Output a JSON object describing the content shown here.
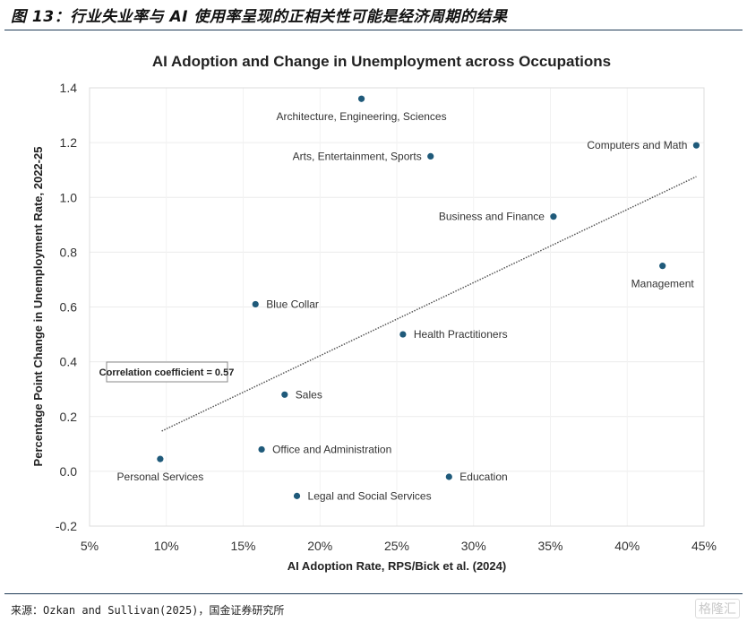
{
  "figure": {
    "title": "图 13：行业失业率与 AI 使用率呈现的正相关性可能是经济周期的结果",
    "source": "来源：Ozkan and Sullivan(2025)，国金证券研究所",
    "watermark": "格隆汇"
  },
  "chart_data": {
    "type": "scatter",
    "title": "AI Adoption and Change in Unemployment across Occupations",
    "xlabel": "AI Adoption Rate, RPS/Bick et al. (2024)",
    "ylabel": "Percentage Point Change in Unemployment Rate, 2022-25",
    "xlim": [
      5,
      45
    ],
    "ylim": [
      -0.2,
      1.4
    ],
    "x_ticks": [
      "5%",
      "10%",
      "15%",
      "20%",
      "25%",
      "30%",
      "35%",
      "40%",
      "45%"
    ],
    "x_tick_values": [
      5,
      10,
      15,
      20,
      25,
      30,
      35,
      40,
      45
    ],
    "y_ticks": [
      "-0.2",
      "0.0",
      "0.2",
      "0.4",
      "0.6",
      "0.8",
      "1.0",
      "1.2",
      "1.4"
    ],
    "y_tick_values": [
      -0.2,
      0.0,
      0.2,
      0.4,
      0.6,
      0.8,
      1.0,
      1.2,
      1.4
    ],
    "grid": true,
    "point_color": "#1f5a7a",
    "points": [
      {
        "label": "Architecture, Engineering, Sciences",
        "x": 22.7,
        "y": 1.36,
        "label_pos": "below"
      },
      {
        "label": "Arts, Entertainment, Sports",
        "x": 27.2,
        "y": 1.15,
        "label_pos": "left"
      },
      {
        "label": "Computers and Math",
        "x": 44.5,
        "y": 1.19,
        "label_pos": "left"
      },
      {
        "label": "Business and Finance",
        "x": 35.2,
        "y": 0.93,
        "label_pos": "left"
      },
      {
        "label": "Management",
        "x": 42.3,
        "y": 0.75,
        "label_pos": "below"
      },
      {
        "label": "Blue Collar",
        "x": 15.8,
        "y": 0.61,
        "label_pos": "right"
      },
      {
        "label": "Health Practitioners",
        "x": 25.4,
        "y": 0.5,
        "label_pos": "right"
      },
      {
        "label": "Sales",
        "x": 17.7,
        "y": 0.28,
        "label_pos": "right"
      },
      {
        "label": "Office and Administration",
        "x": 16.2,
        "y": 0.08,
        "label_pos": "right"
      },
      {
        "label": "Personal Services",
        "x": 9.6,
        "y": 0.045,
        "label_pos": "below"
      },
      {
        "label": "Education",
        "x": 28.4,
        "y": -0.02,
        "label_pos": "right"
      },
      {
        "label": "Legal and Social Services",
        "x": 18.5,
        "y": -0.09,
        "label_pos": "right"
      }
    ],
    "trendline": {
      "style": "dotted",
      "x": [
        9.7,
        44.5
      ],
      "y": [
        0.147,
        1.076
      ]
    },
    "annotation": "Correlation coefficient = 0.57"
  }
}
